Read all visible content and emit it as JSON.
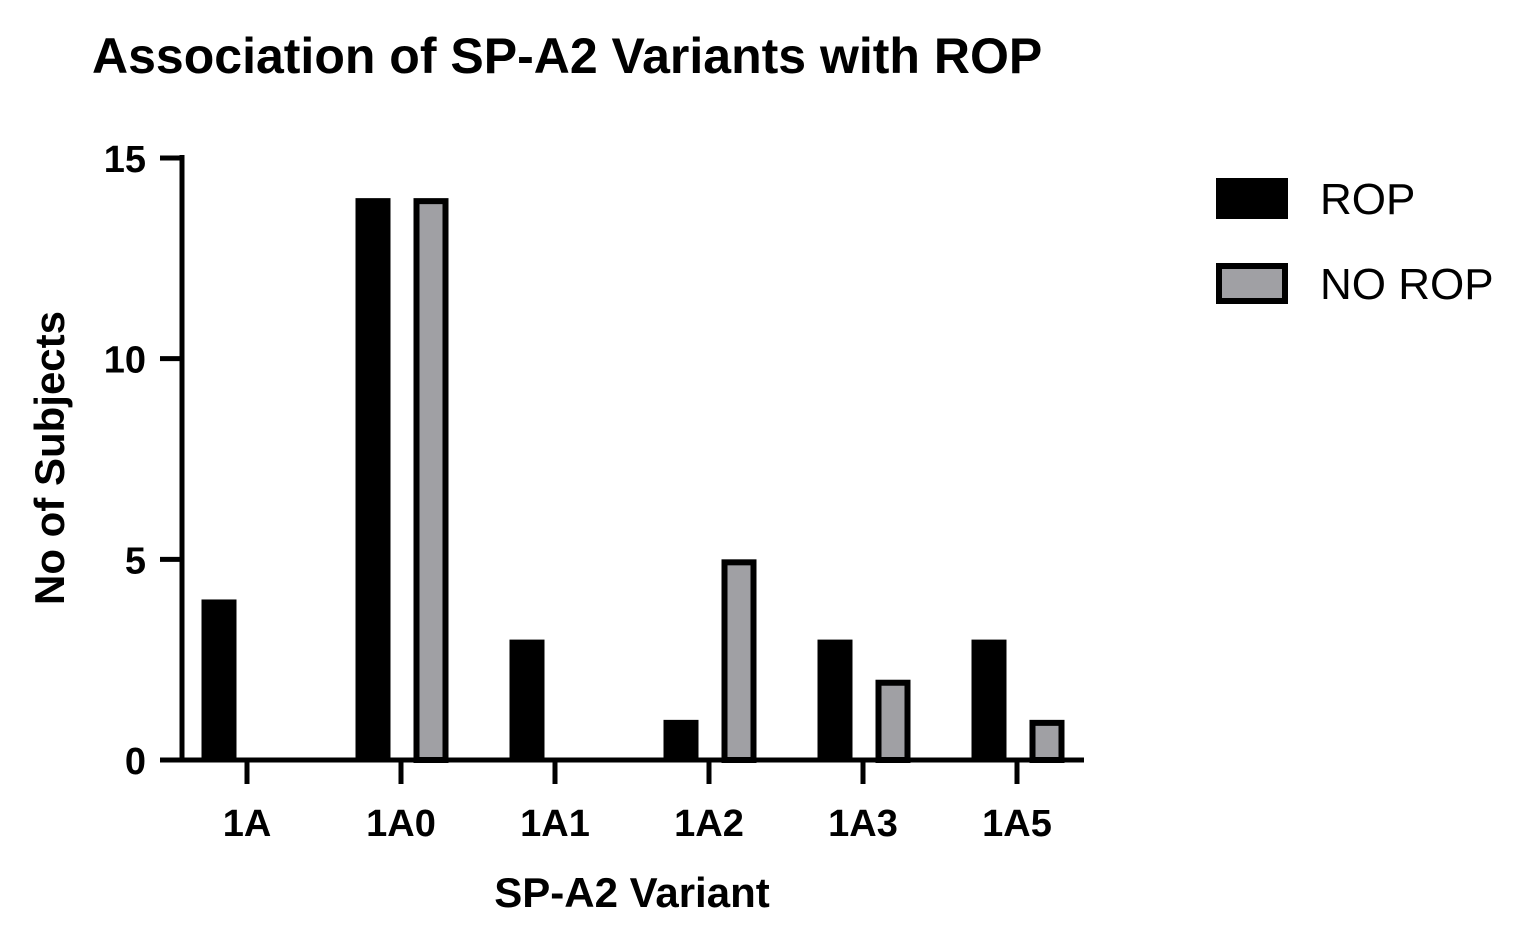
{
  "chart_data": {
    "type": "bar",
    "title": "Association of SP-A2 Variants with ROP",
    "xlabel": "SP-A2 Variant",
    "ylabel": "No of Subjects",
    "categories": [
      "1A",
      "1A0",
      "1A1",
      "1A2",
      "1A3",
      "1A5"
    ],
    "series": [
      {
        "name": "ROP",
        "values": [
          4,
          14,
          3,
          1,
          3,
          3
        ],
        "color": "#000000"
      },
      {
        "name": "NO ROP",
        "values": [
          0,
          14,
          0,
          5,
          2,
          1
        ],
        "color": "#a0a0a4",
        "stroke": "#000000"
      }
    ],
    "ylim": [
      0,
      15
    ],
    "yticks": [
      0,
      5,
      10,
      15
    ],
    "grid": false,
    "legend": "right"
  }
}
